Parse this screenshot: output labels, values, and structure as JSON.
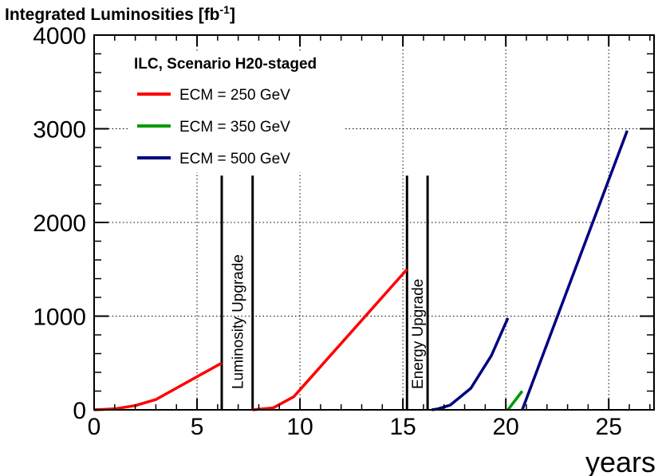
{
  "chart_data": {
    "type": "line",
    "title": "Integrated Luminosities  [fb",
    "title_superscript": "-1",
    "title_close": "]",
    "xlabel": "years",
    "ylabel": "",
    "xlim": [
      0,
      27.2
    ],
    "ylim": [
      0,
      4000
    ],
    "x_ticks": [
      0,
      5,
      10,
      15,
      20,
      25
    ],
    "x_tick_labels": [
      "0",
      "5",
      "10",
      "15",
      "20",
      "25"
    ],
    "y_ticks": [
      0,
      1000,
      2000,
      3000,
      4000
    ],
    "y_tick_labels": [
      "0",
      "1000",
      "2000",
      "3000",
      "4000"
    ],
    "grid": "dotted",
    "legend_title": "ILC, Scenario H20-staged",
    "legend_position": "top-left",
    "series": [
      {
        "name": "ECM = 250 GeV",
        "color": "#ff0000",
        "segments": [
          [
            [
              0,
              0
            ],
            [
              1,
              10
            ],
            [
              2,
              45
            ],
            [
              3,
              110
            ],
            [
              6.2,
              500
            ]
          ],
          [
            [
              7.7,
              0
            ],
            [
              8.7,
              20
            ],
            [
              9.7,
              140
            ],
            [
              15.2,
              1500
            ]
          ]
        ]
      },
      {
        "name": "ECM = 350 GeV",
        "color": "#009900",
        "segments": [
          [
            [
              20.1,
              0
            ],
            [
              20.8,
              200
            ]
          ]
        ]
      },
      {
        "name": "ECM = 500 GeV",
        "color": "#000080",
        "segments": [
          [
            [
              16.4,
              0
            ],
            [
              16.7,
              10
            ],
            [
              17.3,
              50
            ],
            [
              18.3,
              230
            ],
            [
              19.3,
              580
            ],
            [
              20.1,
              980
            ]
          ],
          [
            [
              20.8,
              0
            ],
            [
              25.9,
              2980
            ]
          ]
        ]
      }
    ],
    "annotations": [
      {
        "text": "Luminosity Upgrade",
        "x_start": 6.2,
        "x_end": 7.7,
        "y_top": 2500
      },
      {
        "text": "Energy Upgrade",
        "x_start": 15.2,
        "x_end": 16.2,
        "y_top": 2500
      }
    ]
  }
}
